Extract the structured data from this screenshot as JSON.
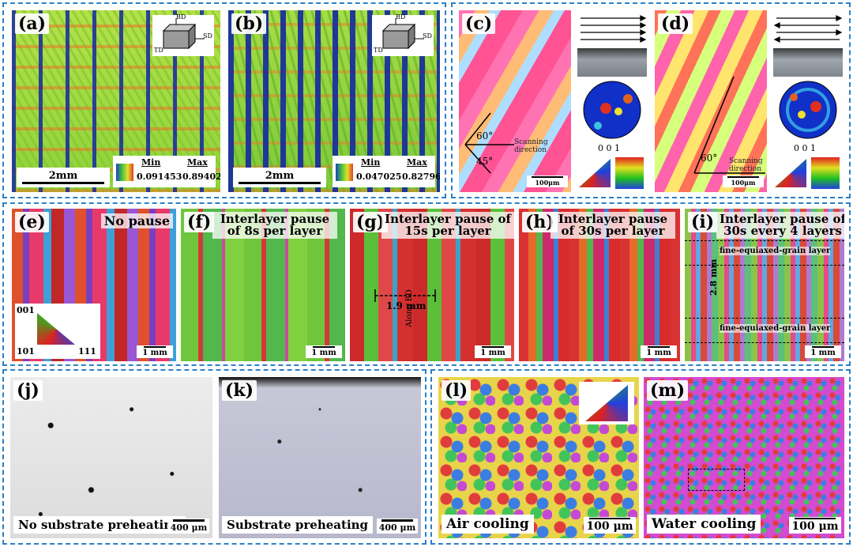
{
  "panels": {
    "a": {
      "label": "(a)",
      "scalebar": "2mm",
      "min_label": "Min",
      "min_value": "0.091453",
      "max_label": "Max",
      "max_value": "0.89402",
      "axes": {
        "bd": "BD",
        "td": "TD",
        "sd": "SD"
      }
    },
    "b": {
      "label": "(b)",
      "scalebar": "2mm",
      "min_label": "Min",
      "min_value": "0.047025",
      "max_label": "Max",
      "max_value": "0.82796",
      "axes": {
        "bd": "BD",
        "td": "TD",
        "sd": "SD"
      }
    },
    "c": {
      "label": "(c)",
      "angle1": "60°",
      "angle2": "45°",
      "scan_label": "Scanning direction",
      "pole_index": "0 0 1",
      "scalebar": "100μm"
    },
    "d": {
      "label": "(d)",
      "angle1": "60°",
      "scan_label": "Scanning direction",
      "pole_index": "0 0 1",
      "scalebar": "100μm"
    },
    "e": {
      "label": "(e)",
      "title": "No pause",
      "scalebar": "1 mm",
      "ipf": {
        "top": "001",
        "left": "101",
        "right": "111"
      }
    },
    "f": {
      "label": "(f)",
      "title": "Interlayer pause of 8s per layer",
      "scalebar": "1 mm"
    },
    "g": {
      "label": "(g)",
      "title": "Interlayer pause of 15s per layer",
      "measure": "1.9 mm",
      "along": "Along BD",
      "scalebar": "1 mm"
    },
    "h": {
      "label": "(h)",
      "title": "Interlayer pause of 30s per layer",
      "scalebar": "1 mm"
    },
    "i": {
      "label": "(i)",
      "title": "Interlayer pause of 30s every 4 layers",
      "layer_top": "fine-equiaxed-grain layer",
      "layer_bottom": "fine-equiaxed-grain layer",
      "measure": "2.8 mm",
      "scalebar": "1 mm"
    },
    "j": {
      "label": "(j)",
      "caption": "No substrate preheating",
      "scalebar": "400 μm"
    },
    "k": {
      "label": "(k)",
      "caption": "Substrate preheating",
      "scalebar": "400 μm"
    },
    "l": {
      "label": "(l)",
      "caption": "Air cooling",
      "scalebar": "100 μm"
    },
    "m": {
      "label": "(m)",
      "caption": "Water cooling",
      "scalebar": "100 μm"
    }
  },
  "colors": {
    "frame": "#2a7fc7"
  }
}
